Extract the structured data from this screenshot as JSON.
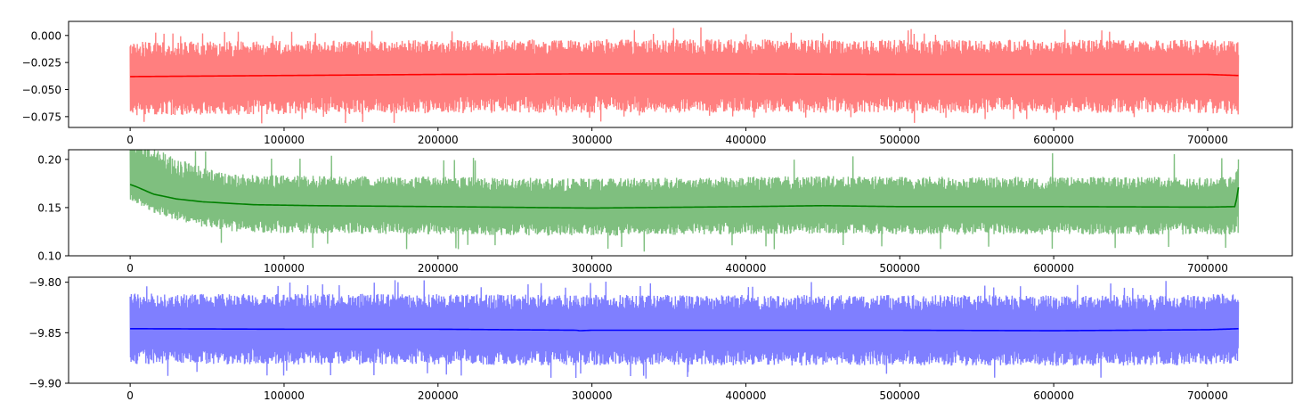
{
  "chart_data": [
    {
      "type": "line",
      "title": "",
      "xlabel": "",
      "ylabel": "",
      "xlim": [
        -40000,
        755000
      ],
      "ylim": [
        -0.085,
        0.013
      ],
      "xticks": [
        0,
        100000,
        200000,
        300000,
        400000,
        500000,
        600000,
        700000
      ],
      "xtick_labels": [
        "0",
        "100000",
        "200000",
        "300000",
        "400000",
        "500000",
        "600000",
        "700000"
      ],
      "yticks": [
        0.0,
        -0.025,
        -0.05,
        -0.075
      ],
      "ytick_labels": [
        "0.000",
        "−0.025",
        "−0.050",
        "−0.075"
      ],
      "grid": false,
      "series": [
        {
          "role": "raw",
          "color": "#ff0000",
          "alpha": 0.5,
          "x_range": [
            0,
            720000
          ],
          "center": -0.036,
          "band": [
            -0.072,
            -0.004
          ],
          "extremes": [
            -0.081,
            0.007
          ]
        },
        {
          "role": "smoothed",
          "color": "#ff0000",
          "x": [
            0,
            50000,
            100000,
            200000,
            300000,
            385000,
            500000,
            600000,
            700000,
            720000
          ],
          "y": [
            -0.038,
            -0.0375,
            -0.037,
            -0.036,
            -0.0355,
            -0.0355,
            -0.036,
            -0.036,
            -0.036,
            -0.037
          ]
        }
      ]
    },
    {
      "type": "line",
      "title": "",
      "xlabel": "",
      "ylabel": "",
      "xlim": [
        -40000,
        755000
      ],
      "ylim": [
        0.1,
        0.21
      ],
      "xticks": [
        0,
        100000,
        200000,
        300000,
        400000,
        500000,
        600000,
        700000
      ],
      "xtick_labels": [
        "0",
        "100000",
        "200000",
        "300000",
        "400000",
        "500000",
        "600000",
        "700000"
      ],
      "yticks": [
        0.1,
        0.15,
        0.2
      ],
      "ytick_labels": [
        "0.10",
        "0.15",
        "0.20"
      ],
      "grid": false,
      "series": [
        {
          "role": "raw",
          "color": "#008000",
          "alpha": 0.5,
          "x_range": [
            0,
            720000
          ],
          "center": 0.151,
          "band": [
            0.122,
            0.182
          ],
          "early_band": [
            0.135,
            0.205
          ],
          "extremes": [
            0.105,
            0.207
          ]
        },
        {
          "role": "smoothed",
          "color": "#008000",
          "x": [
            0,
            5000,
            15000,
            30000,
            47000,
            80000,
            120000,
            200000,
            300000,
            400000,
            450000,
            500000,
            600000,
            700000,
            718000,
            720000
          ],
          "y": [
            0.174,
            0.171,
            0.164,
            0.159,
            0.156,
            0.153,
            0.152,
            0.151,
            0.1495,
            0.151,
            0.152,
            0.151,
            0.151,
            0.1505,
            0.151,
            0.171
          ]
        }
      ]
    },
    {
      "type": "line",
      "title": "",
      "xlabel": "",
      "ylabel": "",
      "xlim": [
        -40000,
        755000
      ],
      "ylim": [
        -9.9,
        -9.795
      ],
      "xticks": [
        0,
        100000,
        200000,
        300000,
        400000,
        500000,
        600000,
        700000
      ],
      "xtick_labels": [
        "0",
        "100000",
        "200000",
        "300000",
        "400000",
        "500000",
        "600000",
        "700000"
      ],
      "yticks": [
        -9.8,
        -9.85,
        -9.9
      ],
      "ytick_labels": [
        "−9.80",
        "−9.85",
        "−9.90"
      ],
      "grid": false,
      "series": [
        {
          "role": "raw",
          "color": "#0000ff",
          "alpha": 0.5,
          "x_range": [
            0,
            720000
          ],
          "center": -9.847,
          "band": [
            -9.882,
            -9.812
          ],
          "extremes": [
            -9.895,
            -9.798
          ]
        },
        {
          "role": "smoothed",
          "color": "#0000ff",
          "x": [
            0,
            100000,
            200000,
            290000,
            292000,
            300000,
            400000,
            500000,
            600000,
            700000,
            720000
          ],
          "y": [
            -9.846,
            -9.8465,
            -9.8465,
            -9.8475,
            -9.848,
            -9.8475,
            -9.8475,
            -9.8475,
            -9.848,
            -9.847,
            -9.846
          ]
        }
      ]
    }
  ]
}
